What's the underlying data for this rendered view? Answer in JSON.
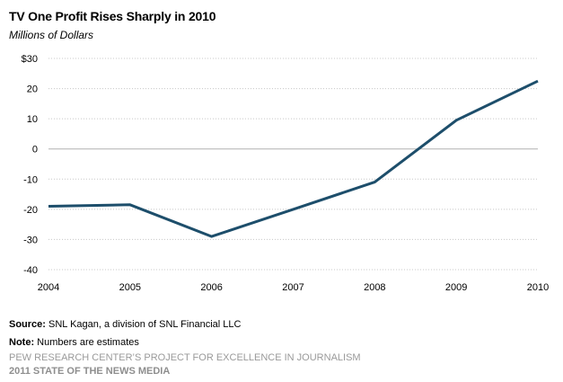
{
  "chart_data": {
    "type": "line",
    "title": "TV One Profit Rises  Sharply  in 2010",
    "subtitle": "Millions of Dollars",
    "xlabel": "",
    "ylabel": "",
    "x": [
      "2004",
      "2005",
      "2006",
      "2007",
      "2008",
      "2009",
      "2010"
    ],
    "series": [
      {
        "values": [
          -19,
          -18.5,
          -29,
          -20,
          -11,
          9.5,
          22.5
        ]
      }
    ],
    "y_ticks": [
      30,
      20,
      10,
      0,
      -10,
      -20,
      -30,
      -40
    ],
    "y_tick_labels": [
      "$30",
      "20",
      "10",
      "0",
      "-10",
      "-20",
      "-30",
      "-40"
    ],
    "ylim": [
      -40,
      30
    ],
    "grid": true,
    "line_color": "#1d4e6b"
  },
  "footer": {
    "source_label": "Source:",
    "source_text": " SNL Kagan, a division of SNL Financial LLC",
    "note_label": "Note:",
    "note_text": " Numbers are estimates",
    "credit_line1": "PEW RESEARCH CENTER’S PROJECT FOR EXCELLENCE IN JOURNALISM",
    "credit_line2": "2011 STATE OF THE NEWS MEDIA"
  }
}
